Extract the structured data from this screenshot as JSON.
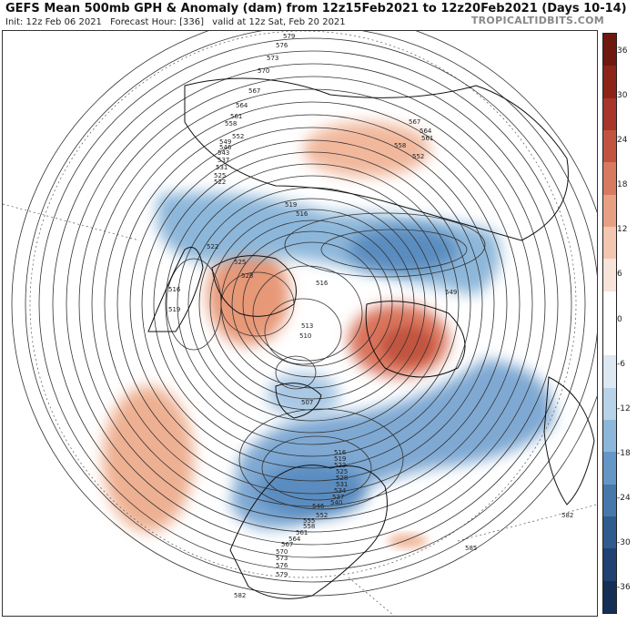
{
  "header": {
    "title": "GEFS Mean 500mb GPH & Anomaly (dam) from 12z15Feb2021 to 12z20Feb2021 (Days 10-14)",
    "init": "Init: 12z Feb 06 2021",
    "forecast_hour": "Forecast Hour: [336]",
    "valid": "valid at 12z Sat, Feb 20 2021",
    "brand": "TROPICALTIDBITS.COM"
  },
  "colorbar": {
    "ticks": [
      "36",
      "30",
      "24",
      "18",
      "12",
      "6",
      "0",
      "-6",
      "-12",
      "-18",
      "-24",
      "-30",
      "-36"
    ],
    "colors": [
      "#6e1810",
      "#8c2418",
      "#a8362a",
      "#c2543f",
      "#d77a5f",
      "#e8a084",
      "#f3c6b0",
      "#f7e4da",
      "#ffffff",
      "#ffffff",
      "#dde8f2",
      "#b8d2e8",
      "#8db7da",
      "#6497c6",
      "#4678ac",
      "#2f5b8f",
      "#1f4272",
      "#142e56"
    ]
  },
  "contours": {
    "labels": [
      "579",
      "576",
      "573",
      "570",
      "567",
      "564",
      "561",
      "558",
      "552",
      "549",
      "546",
      "543",
      "537",
      "531",
      "525",
      "522",
      "519",
      "516",
      "525",
      "528",
      "522",
      "516",
      "519",
      "516",
      "513",
      "510",
      "507",
      "516",
      "519",
      "522",
      "525",
      "528",
      "531",
      "534",
      "537",
      "540",
      "546",
      "552",
      "555",
      "558",
      "561",
      "564",
      "567",
      "570",
      "573",
      "576",
      "579",
      "582",
      "582",
      "585",
      "567",
      "564",
      "561",
      "558",
      "552",
      "549"
    ]
  }
}
